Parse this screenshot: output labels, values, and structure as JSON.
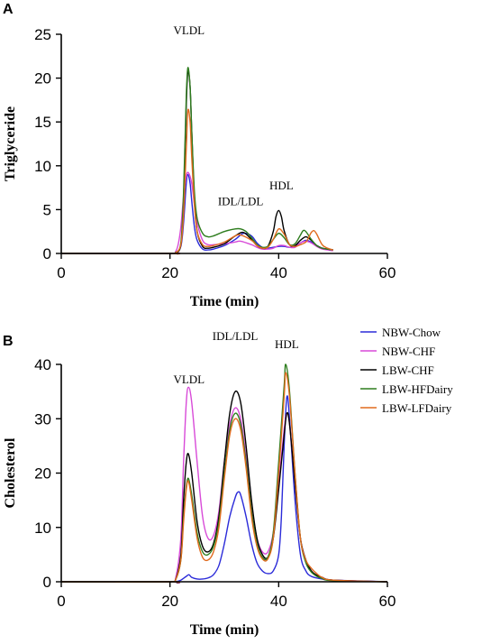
{
  "colors": {
    "NBW-Chow": "#2b2bd9",
    "NBW-CHF": "#d84ad8",
    "LBW-CHF": "#000000",
    "LBW-HFDairy": "#2e7d1e",
    "LBW-LFDairy": "#e06b1e"
  },
  "legend": [
    "NBW-Chow",
    "NBW-CHF",
    "LBW-CHF",
    "LBW-HFDairy",
    "LBW-LFDairy"
  ],
  "chart_data": [
    {
      "panel": "A",
      "type": "line",
      "xlabel": "Time (min)",
      "ylabel": "Triglyceride",
      "xlim": [
        0,
        60
      ],
      "ylim": [
        0,
        25
      ],
      "xticks": [
        0,
        20,
        40,
        60
      ],
      "yticks": [
        0,
        5,
        10,
        15,
        20,
        25
      ],
      "annotations": [
        {
          "text": "VLDL",
          "x": 23.5,
          "y": 25
        },
        {
          "text": "IDL/LDL",
          "x": 33,
          "y": 5.5
        },
        {
          "text": "HDL",
          "x": 40.5,
          "y": 7.3
        }
      ],
      "series": [
        {
          "name": "NBW-Chow",
          "x": [
            0,
            20,
            21,
            22,
            22.5,
            23,
            23.3,
            23.7,
            24,
            24.5,
            25,
            26,
            27,
            28,
            30,
            32,
            33.5,
            35,
            36,
            37,
            38,
            39,
            40,
            41,
            42,
            43,
            44,
            45,
            46,
            47,
            48,
            49,
            50
          ],
          "y": [
            0,
            0,
            0.05,
            0.8,
            3.5,
            8,
            9.0,
            8.0,
            6,
            3,
            1.5,
            0.5,
            0.4,
            0.5,
            0.9,
            1.6,
            2.3,
            2.0,
            1.2,
            0.7,
            0.6,
            0.7,
            0.8,
            0.8,
            0.7,
            0.8,
            1.2,
            1.5,
            1.3,
            0.9,
            0.6,
            0.5,
            0.4
          ]
        },
        {
          "name": "NBW-CHF",
          "x": [
            0,
            20,
            21,
            21.5,
            22,
            22.5,
            23,
            23.4,
            24,
            24.5,
            25,
            26,
            27,
            28,
            30,
            32,
            33,
            35,
            36,
            37,
            38,
            39,
            40,
            41,
            42,
            43,
            44,
            45,
            46,
            47,
            48,
            49,
            50
          ],
          "y": [
            0,
            0,
            0.2,
            1.0,
            3.0,
            6.5,
            8.8,
            9.2,
            8.0,
            5.5,
            3.5,
            1.5,
            1.0,
            1.0,
            1.1,
            1.3,
            1.4,
            1.0,
            0.7,
            0.5,
            0.5,
            0.6,
            0.9,
            0.9,
            0.7,
            0.7,
            1.2,
            1.4,
            1.2,
            0.8,
            0.5,
            0.4,
            0.3
          ]
        },
        {
          "name": "LBW-CHF",
          "x": [
            0,
            20,
            21,
            22,
            22.5,
            23,
            23.3,
            23.7,
            24,
            24.5,
            25,
            26,
            27,
            28,
            30,
            32,
            33.5,
            35,
            36,
            37,
            38,
            39,
            39.5,
            40,
            40.5,
            41,
            42,
            43,
            44,
            45,
            46,
            47,
            48,
            49,
            50
          ],
          "y": [
            0,
            0,
            0.05,
            1.0,
            6,
            17,
            20.8,
            19,
            14,
            6,
            2.5,
            0.8,
            0.6,
            0.7,
            1.1,
            2.0,
            2.4,
            1.6,
            0.9,
            0.6,
            0.8,
            2.5,
            4.2,
            4.9,
            4.2,
            2.6,
            1.0,
            0.9,
            1.5,
            1.9,
            1.5,
            0.9,
            0.6,
            0.5,
            0.4
          ]
        },
        {
          "name": "LBW-HFDairy",
          "x": [
            0,
            20,
            21,
            22,
            22.5,
            23,
            23.3,
            23.7,
            24,
            24.5,
            25,
            26,
            27,
            28,
            30,
            32,
            33,
            34,
            35,
            36,
            37,
            38,
            39,
            40,
            41,
            42,
            43,
            44,
            44.5,
            45,
            46,
            47,
            48,
            49,
            50
          ],
          "y": [
            0,
            0,
            0.1,
            1.2,
            7,
            18,
            21.2,
            19,
            14,
            7,
            4.0,
            2.3,
            1.9,
            2.0,
            2.5,
            2.8,
            2.8,
            2.5,
            1.8,
            1.0,
            0.7,
            0.8,
            1.6,
            2.3,
            1.8,
            1.0,
            1.1,
            2.1,
            2.6,
            2.5,
            1.6,
            0.9,
            0.6,
            0.5,
            0.4
          ]
        },
        {
          "name": "LBW-LFDairy",
          "x": [
            0,
            20,
            21,
            22,
            22.5,
            23,
            23.3,
            23.7,
            24,
            24.5,
            25,
            26,
            27,
            28,
            30,
            32,
            33,
            35,
            36,
            37,
            38,
            39,
            40,
            41,
            42,
            43,
            44,
            45,
            45.5,
            46,
            46.5,
            47,
            48,
            49,
            50
          ],
          "y": [
            0,
            0,
            0.05,
            1.0,
            4.5,
            12,
            16.3,
            15,
            11,
            5.5,
            2.5,
            1.0,
            0.8,
            0.9,
            1.3,
            2.0,
            2.1,
            1.5,
            0.9,
            0.6,
            0.7,
            1.6,
            2.8,
            2.2,
            1.0,
            0.8,
            1.0,
            1.3,
            1.8,
            2.4,
            2.6,
            2.2,
            1.0,
            0.6,
            0.4
          ]
        }
      ]
    },
    {
      "panel": "B",
      "type": "line",
      "xlabel": "Time (min)",
      "ylabel": "Cholesterol",
      "xlim": [
        0,
        60
      ],
      "ylim": [
        0,
        40
      ],
      "xticks": [
        0,
        20,
        40,
        60
      ],
      "yticks": [
        0,
        10,
        20,
        30,
        40
      ],
      "annotations": [
        {
          "text": "VLDL",
          "x": 23.5,
          "y": 36.5
        },
        {
          "text": "IDL/LDL",
          "x": 32,
          "y": 44.5
        },
        {
          "text": "HDL",
          "x": 41.5,
          "y": 43
        }
      ],
      "series": [
        {
          "name": "NBW-Chow",
          "x": [
            0,
            20,
            21,
            22,
            23,
            23.5,
            24,
            25,
            26,
            27,
            28,
            29,
            30,
            31,
            32,
            32.5,
            33,
            34,
            35,
            36,
            37,
            38,
            39,
            40,
            40.5,
            41,
            41.5,
            42,
            43,
            44,
            45,
            46,
            48,
            50,
            60
          ],
          "y": [
            0,
            0,
            0,
            0.3,
            1.0,
            1.3,
            0.8,
            0.5,
            0.5,
            0.7,
            1.3,
            3.0,
            7,
            12,
            15.5,
            16.5,
            16.0,
            12,
            7,
            3.5,
            2.0,
            1.5,
            2.0,
            5,
            12,
            25,
            34.0,
            30,
            15,
            5,
            2.0,
            1.0,
            0.5,
            0.3,
            0
          ]
        },
        {
          "name": "NBW-CHF",
          "x": [
            0,
            20,
            21,
            22,
            22.5,
            23,
            23.4,
            24,
            25,
            26,
            27,
            28,
            29,
            30,
            31,
            32,
            33,
            34,
            35,
            36,
            37,
            38,
            39,
            40,
            41,
            41.5,
            42,
            43,
            44,
            45,
            46,
            47,
            48,
            50,
            60
          ],
          "y": [
            0,
            0,
            0.5,
            8,
            22,
            33,
            35.8,
            33,
            22,
            12,
            8,
            8.5,
            13,
            22,
            29,
            32.0,
            30,
            23,
            14,
            8,
            5.5,
            5.5,
            9,
            18,
            28,
            31.0,
            29,
            18,
            8,
            4,
            2.0,
            1.2,
            0.8,
            0.3,
            0
          ]
        },
        {
          "name": "LBW-CHF",
          "x": [
            0,
            20,
            21,
            22,
            22.5,
            23,
            23.4,
            24,
            25,
            26,
            27,
            28,
            29,
            30,
            31,
            32,
            33,
            34,
            35,
            36,
            37,
            38,
            39,
            40,
            41,
            41.5,
            42,
            43,
            44,
            45,
            46,
            47,
            48,
            50,
            60
          ],
          "y": [
            0,
            0,
            0.3,
            5,
            15,
            22,
            23.5,
            20,
            11,
            6.5,
            5.5,
            7,
            12,
            22,
            31,
            35.0,
            33,
            25,
            15,
            8,
            5,
            4.5,
            8,
            17,
            27,
            31.0,
            29,
            18,
            8,
            4,
            2.0,
            1.2,
            0.8,
            0.3,
            0
          ]
        },
        {
          "name": "LBW-HFDairy",
          "x": [
            0,
            20,
            21,
            22,
            22.5,
            23,
            23.4,
            24,
            25,
            26,
            27,
            28,
            29,
            30,
            31,
            32,
            33,
            34,
            35,
            36,
            37,
            38,
            39,
            40,
            41,
            41.3,
            42,
            43,
            44,
            45,
            46,
            47,
            48,
            50,
            60
          ],
          "y": [
            0,
            0,
            0.3,
            4,
            12,
            17.5,
            19.0,
            16,
            9,
            5.5,
            5.0,
            6.5,
            11,
            20,
            28,
            31.0,
            29,
            22,
            13,
            7,
            4.5,
            4.5,
            9,
            22,
            36,
            40.0,
            35,
            20,
            8,
            3.5,
            1.8,
            1.0,
            0.6,
            0.2,
            0
          ]
        },
        {
          "name": "LBW-LFDairy",
          "x": [
            0,
            20,
            21,
            22,
            22.5,
            23,
            23.4,
            24,
            25,
            26,
            27,
            28,
            29,
            30,
            31,
            32,
            33,
            34,
            35,
            36,
            37,
            38,
            39,
            40,
            41,
            41.3,
            42,
            43,
            44,
            45,
            46,
            47,
            48,
            50,
            60
          ],
          "y": [
            0,
            0,
            0.3,
            4,
            11,
            17,
            18.5,
            15,
            8,
            4.5,
            4.0,
            5.5,
            10,
            19,
            27,
            30.0,
            28,
            21,
            12,
            6.5,
            4.2,
            4.2,
            8,
            20,
            34,
            38.5,
            34,
            20,
            8,
            4,
            2.5,
            1.5,
            0.8,
            0.3,
            0
          ]
        }
      ]
    }
  ]
}
